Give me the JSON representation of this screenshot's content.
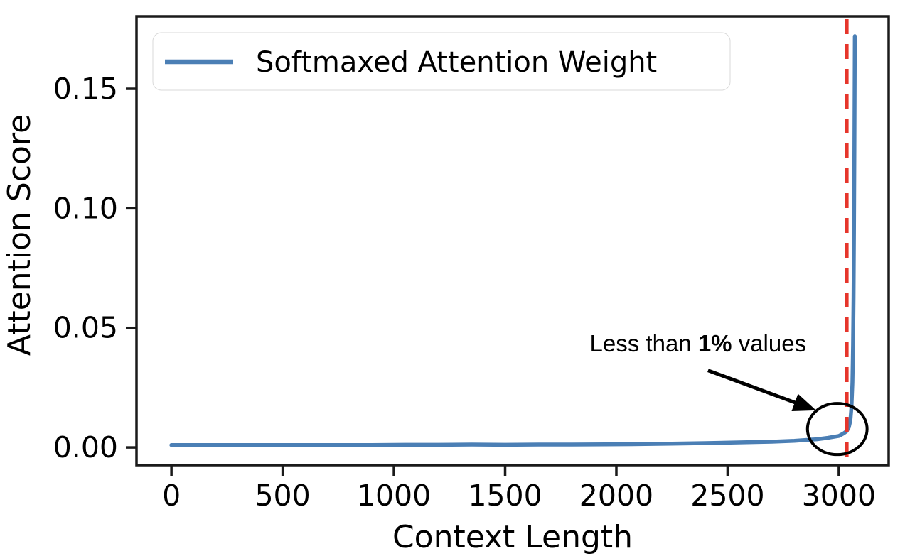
{
  "chart_data": {
    "type": "line",
    "title": "",
    "xlabel": "Context Length",
    "ylabel": "Attention Score",
    "xlim": [
      -157,
      3224
    ],
    "ylim": [
      -0.0074,
      0.1803
    ],
    "xticks": [
      0,
      500,
      1000,
      1500,
      2000,
      2500,
      3000
    ],
    "xtick_labels": [
      "0",
      "500",
      "1000",
      "1500",
      "2000",
      "2500",
      "3000"
    ],
    "yticks": [
      0.0,
      0.05,
      0.1,
      0.15
    ],
    "ytick_labels": [
      "0.00",
      "0.05",
      "0.10",
      "0.15"
    ],
    "grid": false,
    "legend": {
      "position": "upper-left",
      "entries": [
        {
          "label": "Softmaxed Attention Weight",
          "color": "#4b7fb5"
        }
      ]
    },
    "series": [
      {
        "name": "Softmaxed Attention Weight",
        "color": "#4b7fb5",
        "points": [
          [
            0,
            0.001
          ],
          [
            150,
            0.001
          ],
          [
            300,
            0.001
          ],
          [
            450,
            0.001
          ],
          [
            600,
            0.001
          ],
          [
            750,
            0.001
          ],
          [
            900,
            0.001
          ],
          [
            1050,
            0.0011
          ],
          [
            1200,
            0.0011
          ],
          [
            1350,
            0.0012
          ],
          [
            1500,
            0.0011
          ],
          [
            1650,
            0.0012
          ],
          [
            1800,
            0.0012
          ],
          [
            1950,
            0.0013
          ],
          [
            2100,
            0.0014
          ],
          [
            2250,
            0.0016
          ],
          [
            2400,
            0.0018
          ],
          [
            2550,
            0.0021
          ],
          [
            2700,
            0.0024
          ],
          [
            2800,
            0.0028
          ],
          [
            2900,
            0.0034
          ],
          [
            2950,
            0.004
          ],
          [
            3000,
            0.0048
          ],
          [
            3020,
            0.0058
          ],
          [
            3035,
            0.0068
          ],
          [
            3045,
            0.0085
          ],
          [
            3052,
            0.0115
          ],
          [
            3057,
            0.017
          ],
          [
            3061,
            0.027
          ],
          [
            3064,
            0.043
          ],
          [
            3066,
            0.063
          ],
          [
            3068,
            0.09
          ],
          [
            3070,
            0.125
          ],
          [
            3071,
            0.148
          ],
          [
            3072,
            0.172
          ]
        ]
      }
    ],
    "vline": {
      "x": 3035,
      "color": "#e6352b",
      "style": "dashed"
    },
    "annotation": {
      "text_prefix": "Less than ",
      "text_bold": "1%",
      "text_suffix": " values",
      "text_pos": [
        2367,
        0.0401
      ],
      "arrow_from": [
        2412,
        0.0322
      ],
      "arrow_to": [
        2898,
        0.0155
      ],
      "circle_center": [
        2993,
        0.0077
      ],
      "circle_rx_data": 134,
      "circle_ry_data": 0.0107,
      "color": "#000000"
    },
    "colors": {
      "axis": "#1a1a1a",
      "text": "#000000",
      "legend_border": "#d8d8d8"
    }
  }
}
